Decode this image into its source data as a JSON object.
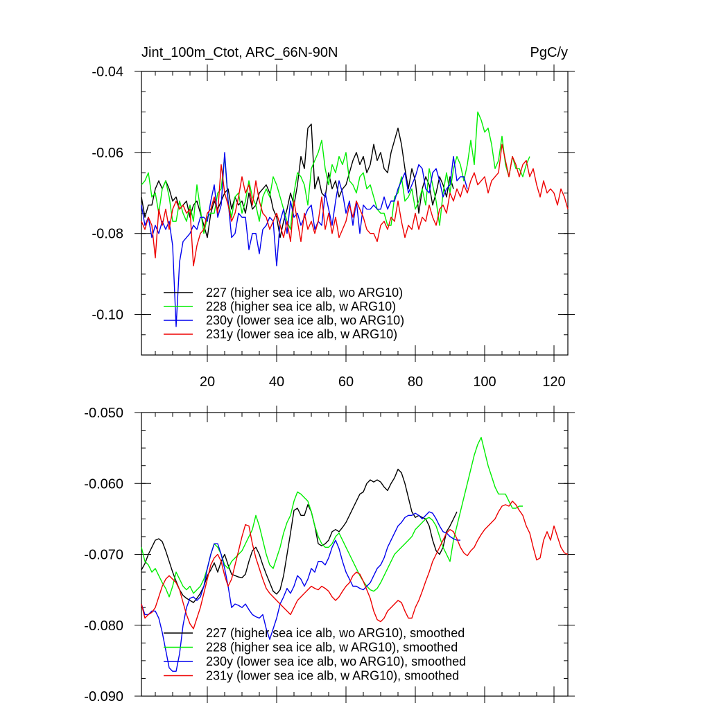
{
  "chart_data": [
    {
      "type": "line",
      "title": "Jint_100m_Ctot, ARC_66N-90N",
      "units": "PgC/y",
      "xlim": [
        1,
        124
      ],
      "ylim": [
        -0.11,
        -0.04
      ],
      "x_ticks": [
        20,
        40,
        60,
        80,
        100,
        120
      ],
      "x_tick_labels": [
        "20",
        "40",
        "60",
        "80",
        "100",
        "120"
      ],
      "y_ticks": [
        -0.04,
        -0.06,
        -0.08,
        -0.1
      ],
      "y_tick_labels": [
        "-0.04",
        "-0.06",
        "-0.08",
        "-0.10"
      ],
      "series": [
        {
          "name": "227 (higher sea ice alb, wo ARG10)",
          "color": "#000000",
          "x_start": 1,
          "values": [
            -0.071,
            -0.076,
            -0.073,
            -0.073,
            -0.069,
            -0.067,
            -0.069,
            -0.067,
            -0.069,
            -0.072,
            -0.071,
            -0.074,
            -0.073,
            -0.072,
            -0.076,
            -0.073,
            -0.072,
            -0.075,
            -0.078,
            -0.081,
            -0.075,
            -0.072,
            -0.074,
            -0.072,
            -0.07,
            -0.069,
            -0.074,
            -0.071,
            -0.073,
            -0.072,
            -0.075,
            -0.07,
            -0.074,
            -0.073,
            -0.07,
            -0.069,
            -0.068,
            -0.07,
            -0.074,
            -0.076,
            -0.081,
            -0.077,
            -0.074,
            -0.07,
            -0.073,
            -0.068,
            -0.061,
            -0.064,
            -0.054,
            -0.053,
            -0.069,
            -0.066,
            -0.07,
            -0.071,
            -0.065,
            -0.069,
            -0.067,
            -0.071,
            -0.069,
            -0.068,
            -0.065,
            -0.062,
            -0.06,
            -0.063,
            -0.061,
            -0.065,
            -0.063,
            -0.058,
            -0.062,
            -0.06,
            -0.064,
            -0.065,
            -0.06,
            -0.057,
            -0.054,
            -0.058,
            -0.064,
            -0.069,
            -0.064,
            -0.067,
            -0.075,
            -0.069,
            -0.066,
            -0.068,
            -0.073,
            -0.07,
            -0.066,
            -0.068,
            -0.071,
            -0.066,
            -0.069
          ]
        },
        {
          "name": "228 (higher sea ice alb, w ARG10)",
          "color": "#00ee00",
          "x_start": 1,
          "values": [
            -0.068,
            -0.067,
            -0.065,
            -0.071,
            -0.07,
            -0.075,
            -0.069,
            -0.067,
            -0.071,
            -0.077,
            -0.077,
            -0.072,
            -0.075,
            -0.077,
            -0.073,
            -0.077,
            -0.068,
            -0.074,
            -0.08,
            -0.076,
            -0.075,
            -0.075,
            -0.07,
            -0.069,
            -0.061,
            -0.072,
            -0.076,
            -0.071,
            -0.07,
            -0.075,
            -0.072,
            -0.067,
            -0.071,
            -0.073,
            -0.077,
            -0.071,
            -0.069,
            -0.071,
            -0.066,
            -0.068,
            -0.071,
            -0.074,
            -0.077,
            -0.079,
            -0.07,
            -0.065,
            -0.066,
            -0.068,
            -0.073,
            -0.064,
            -0.062,
            -0.06,
            -0.057,
            -0.064,
            -0.068,
            -0.063,
            -0.065,
            -0.061,
            -0.063,
            -0.06,
            -0.067,
            -0.068,
            -0.07,
            -0.066,
            -0.065,
            -0.069,
            -0.068,
            -0.071,
            -0.074,
            -0.075,
            -0.075,
            -0.078,
            -0.078,
            -0.071,
            -0.07,
            -0.066,
            -0.072,
            -0.071,
            -0.069,
            -0.074,
            -0.072,
            -0.069,
            -0.073,
            -0.064,
            -0.068,
            -0.072,
            -0.078,
            -0.07,
            -0.065,
            -0.07,
            -0.064,
            -0.061,
            -0.063,
            -0.067,
            -0.063,
            -0.057,
            -0.063,
            -0.05,
            -0.052,
            -0.055,
            -0.054,
            -0.058,
            -0.064,
            -0.062,
            -0.056,
            -0.063,
            -0.066,
            -0.061,
            -0.064,
            -0.064,
            -0.066,
            -0.063,
            -0.061
          ]
        },
        {
          "name": "230y (lower sea ice alb, wo ARG10)",
          "color": "#0000ee",
          "x_start": 1,
          "values": [
            -0.073,
            -0.078,
            -0.076,
            -0.081,
            -0.078,
            -0.08,
            -0.077,
            -0.079,
            -0.077,
            -0.083,
            -0.103,
            -0.087,
            -0.082,
            -0.081,
            -0.08,
            -0.078,
            -0.079,
            -0.076,
            -0.076,
            -0.077,
            -0.072,
            -0.068,
            -0.076,
            -0.073,
            -0.06,
            -0.072,
            -0.081,
            -0.08,
            -0.075,
            -0.076,
            -0.076,
            -0.084,
            -0.08,
            -0.08,
            -0.085,
            -0.079,
            -0.078,
            -0.076,
            -0.077,
            -0.088,
            -0.077,
            -0.074,
            -0.08,
            -0.072,
            -0.076,
            -0.075,
            -0.078,
            -0.076,
            -0.074,
            -0.073,
            -0.079,
            -0.077,
            -0.078,
            -0.07,
            -0.074,
            -0.078,
            -0.072,
            -0.067,
            -0.07,
            -0.075,
            -0.072,
            -0.078,
            -0.072,
            -0.08,
            -0.073,
            -0.074,
            -0.074,
            -0.073,
            -0.074,
            -0.074,
            -0.071,
            -0.074,
            -0.072,
            -0.072,
            -0.069,
            -0.067,
            -0.065,
            -0.07,
            -0.068,
            -0.066,
            -0.063,
            -0.064,
            -0.069,
            -0.07,
            -0.065,
            -0.064,
            -0.067,
            -0.071,
            -0.069,
            -0.068,
            -0.061,
            -0.067,
            -0.066,
            -0.066,
            -0.069
          ]
        },
        {
          "name": "231y (lower sea ice alb, w ARG10)",
          "color": "#ee0000",
          "x_start": 1,
          "values": [
            -0.077,
            -0.079,
            -0.076,
            -0.078,
            -0.086,
            -0.074,
            -0.078,
            -0.074,
            -0.079,
            -0.074,
            -0.072,
            -0.074,
            -0.073,
            -0.075,
            -0.074,
            -0.088,
            -0.083,
            -0.08,
            -0.079,
            -0.075,
            -0.074,
            -0.071,
            -0.075,
            -0.063,
            -0.07,
            -0.073,
            -0.077,
            -0.075,
            -0.071,
            -0.066,
            -0.07,
            -0.068,
            -0.073,
            -0.067,
            -0.072,
            -0.075,
            -0.076,
            -0.079,
            -0.077,
            -0.075,
            -0.078,
            -0.081,
            -0.077,
            -0.082,
            -0.072,
            -0.077,
            -0.082,
            -0.075,
            -0.079,
            -0.077,
            -0.08,
            -0.077,
            -0.071,
            -0.079,
            -0.075,
            -0.08,
            -0.076,
            -0.081,
            -0.079,
            -0.077,
            -0.073,
            -0.076,
            -0.072,
            -0.074,
            -0.076,
            -0.079,
            -0.08,
            -0.08,
            -0.082,
            -0.078,
            -0.077,
            -0.079,
            -0.076,
            -0.077,
            -0.072,
            -0.077,
            -0.081,
            -0.078,
            -0.079,
            -0.075,
            -0.079,
            -0.076,
            -0.077,
            -0.073,
            -0.076,
            -0.078,
            -0.074,
            -0.073,
            -0.075,
            -0.07,
            -0.072,
            -0.069,
            -0.071,
            -0.068,
            -0.07,
            -0.067,
            -0.065,
            -0.068,
            -0.067,
            -0.066,
            -0.07,
            -0.067,
            -0.066,
            -0.065,
            -0.058,
            -0.062,
            -0.066,
            -0.061,
            -0.063,
            -0.066,
            -0.063,
            -0.062,
            -0.066,
            -0.064,
            -0.068,
            -0.071,
            -0.067,
            -0.07,
            -0.069,
            -0.07,
            -0.073,
            -0.069,
            -0.071,
            -0.074
          ]
        }
      ]
    },
    {
      "type": "line",
      "xlim": [
        1,
        124
      ],
      "ylim": [
        -0.09,
        -0.05
      ],
      "x_ticks": [
        20,
        40,
        60,
        80,
        100,
        120
      ],
      "x_tick_labels": [],
      "y_ticks": [
        -0.05,
        -0.06,
        -0.07,
        -0.08,
        -0.09
      ],
      "y_tick_labels": [
        "-0.050",
        "-0.060",
        "-0.070",
        "-0.080",
        "-0.090"
      ],
      "series": [
        {
          "name": "227 (higher sea ice alb, wo ARG10), smoothed",
          "color": "#000000",
          "x_start": 1,
          "values": [
            -0.0722,
            -0.0713,
            -0.07,
            -0.069,
            -0.068,
            -0.0678,
            -0.0682,
            -0.0695,
            -0.071,
            -0.0725,
            -0.0738,
            -0.075,
            -0.0758,
            -0.0762,
            -0.0765,
            -0.0768,
            -0.0762,
            -0.0755,
            -0.0745,
            -0.073,
            -0.0722,
            -0.0712,
            -0.0725,
            -0.071,
            -0.07,
            -0.0715,
            -0.0728,
            -0.073,
            -0.0732,
            -0.0733,
            -0.0728,
            -0.071,
            -0.0695,
            -0.069,
            -0.07,
            -0.0715,
            -0.0728,
            -0.074,
            -0.0752,
            -0.0756,
            -0.075,
            -0.073,
            -0.07,
            -0.067,
            -0.0638,
            -0.0635,
            -0.0645,
            -0.0645,
            -0.063,
            -0.064,
            -0.066,
            -0.0685,
            -0.0688,
            -0.0685,
            -0.068,
            -0.0668,
            -0.0665,
            -0.0668,
            -0.0662,
            -0.0655,
            -0.0645,
            -0.0635,
            -0.0625,
            -0.0615,
            -0.0612,
            -0.06,
            -0.0595,
            -0.0598,
            -0.0595,
            -0.0598,
            -0.0605,
            -0.061,
            -0.06,
            -0.0592,
            -0.058,
            -0.0585,
            -0.06,
            -0.062,
            -0.064,
            -0.0648,
            -0.0645,
            -0.0648,
            -0.065,
            -0.066,
            -0.068,
            -0.0695,
            -0.07,
            -0.069,
            -0.0668,
            -0.066,
            -0.065,
            -0.064
          ]
        },
        {
          "name": "228 (higher sea ice alb, w ARG10), smoothed",
          "color": "#00ee00",
          "x_start": 1,
          "values": [
            -0.069,
            -0.071,
            -0.0715,
            -0.0725,
            -0.072,
            -0.073,
            -0.074,
            -0.0748,
            -0.076,
            -0.0745,
            -0.0725,
            -0.0735,
            -0.0745,
            -0.075,
            -0.0745,
            -0.0755,
            -0.075,
            -0.0745,
            -0.0735,
            -0.072,
            -0.07,
            -0.0685,
            -0.069,
            -0.07,
            -0.0715,
            -0.072,
            -0.071,
            -0.0705,
            -0.07,
            -0.0695,
            -0.0685,
            -0.0675,
            -0.0665,
            -0.0645,
            -0.066,
            -0.068,
            -0.07,
            -0.0715,
            -0.072,
            -0.0705,
            -0.069,
            -0.067,
            -0.0655,
            -0.0645,
            -0.0625,
            -0.0612,
            -0.0615,
            -0.062,
            -0.0625,
            -0.064,
            -0.066,
            -0.0675,
            -0.0685,
            -0.069,
            -0.069,
            -0.0685,
            -0.0675,
            -0.067,
            -0.068,
            -0.069,
            -0.07,
            -0.071,
            -0.072,
            -0.073,
            -0.0738,
            -0.0745,
            -0.075,
            -0.0752,
            -0.0748,
            -0.074,
            -0.073,
            -0.072,
            -0.071,
            -0.07,
            -0.0695,
            -0.069,
            -0.0685,
            -0.068,
            -0.0675,
            -0.0665,
            -0.066,
            -0.0655,
            -0.065,
            -0.0648,
            -0.0652,
            -0.066,
            -0.0675,
            -0.069,
            -0.07,
            -0.071,
            -0.068,
            -0.066,
            -0.064,
            -0.062,
            -0.06,
            -0.058,
            -0.056,
            -0.0545,
            -0.0535,
            -0.0555,
            -0.0575,
            -0.059,
            -0.0605,
            -0.0615,
            -0.0615,
            -0.0615,
            -0.0625,
            -0.0635,
            -0.0635,
            -0.0632,
            -0.0632
          ]
        },
        {
          "name": "230y (lower sea ice alb, wo ARG10), smoothed",
          "color": "#0000ee",
          "x_start": 1,
          "values": [
            -0.077,
            -0.0785,
            -0.0785,
            -0.078,
            -0.078,
            -0.079,
            -0.081,
            -0.0835,
            -0.086,
            -0.0865,
            -0.0865,
            -0.084,
            -0.08,
            -0.0775,
            -0.0762,
            -0.076,
            -0.0765,
            -0.076,
            -0.0745,
            -0.072,
            -0.07,
            -0.0685,
            -0.0685,
            -0.07,
            -0.072,
            -0.0745,
            -0.0775,
            -0.077,
            -0.0772,
            -0.0775,
            -0.077,
            -0.0778,
            -0.0785,
            -0.0788,
            -0.079,
            -0.0785,
            -0.0805,
            -0.082,
            -0.0805,
            -0.079,
            -0.077,
            -0.076,
            -0.0748,
            -0.0755,
            -0.0745,
            -0.073,
            -0.0735,
            -0.0745,
            -0.0735,
            -0.072,
            -0.0725,
            -0.071,
            -0.071,
            -0.0715,
            -0.0705,
            -0.069,
            -0.068,
            -0.0692,
            -0.071,
            -0.0725,
            -0.0735,
            -0.0745,
            -0.0745,
            -0.0748,
            -0.075,
            -0.0745,
            -0.074,
            -0.073,
            -0.072,
            -0.0715,
            -0.0705,
            -0.069,
            -0.068,
            -0.067,
            -0.066,
            -0.0655,
            -0.0648,
            -0.0645,
            -0.0645,
            -0.0642,
            -0.0645,
            -0.065,
            -0.0645,
            -0.064,
            -0.0642,
            -0.065,
            -0.066,
            -0.0668,
            -0.067,
            -0.0675,
            -0.0678,
            -0.068,
            -0.068
          ]
        },
        {
          "name": "231y (lower sea ice alb, w ARG10), smoothed",
          "color": "#ee0000",
          "x_start": 1,
          "values": [
            -0.077,
            -0.079,
            -0.0785,
            -0.0782,
            -0.0775,
            -0.076,
            -0.0745,
            -0.0735,
            -0.073,
            -0.0735,
            -0.074,
            -0.075,
            -0.0768,
            -0.0785,
            -0.0798,
            -0.0805,
            -0.079,
            -0.0775,
            -0.0755,
            -0.0735,
            -0.0715,
            -0.0705,
            -0.07,
            -0.071,
            -0.073,
            -0.0745,
            -0.0735,
            -0.0715,
            -0.0695,
            -0.0675,
            -0.0658,
            -0.066,
            -0.0685,
            -0.0705,
            -0.072,
            -0.0735,
            -0.0748,
            -0.0755,
            -0.076,
            -0.0765,
            -0.077,
            -0.0775,
            -0.078,
            -0.0785,
            -0.0775,
            -0.0765,
            -0.076,
            -0.0755,
            -0.075,
            -0.0745,
            -0.0748,
            -0.075,
            -0.0745,
            -0.0748,
            -0.0752,
            -0.076,
            -0.0765,
            -0.076,
            -0.0752,
            -0.0745,
            -0.074,
            -0.073,
            -0.0725,
            -0.0728,
            -0.0738,
            -0.075,
            -0.0762,
            -0.078,
            -0.0792,
            -0.0795,
            -0.079,
            -0.078,
            -0.0775,
            -0.077,
            -0.0765,
            -0.0768,
            -0.078,
            -0.079,
            -0.079,
            -0.0775,
            -0.0765,
            -0.0752,
            -0.0738,
            -0.0725,
            -0.071,
            -0.07,
            -0.069,
            -0.068,
            -0.067,
            -0.0665,
            -0.0668,
            -0.0678,
            -0.069,
            -0.0698,
            -0.0702,
            -0.0695,
            -0.069,
            -0.068,
            -0.0672,
            -0.0665,
            -0.066,
            -0.0655,
            -0.065,
            -0.064,
            -0.0632,
            -0.063,
            -0.0632,
            -0.0625,
            -0.063,
            -0.0638,
            -0.0645,
            -0.066,
            -0.067,
            -0.069,
            -0.0708,
            -0.0705,
            -0.068,
            -0.0668,
            -0.068,
            -0.066,
            -0.0675,
            -0.069,
            -0.0698,
            -0.07
          ]
        }
      ]
    }
  ]
}
